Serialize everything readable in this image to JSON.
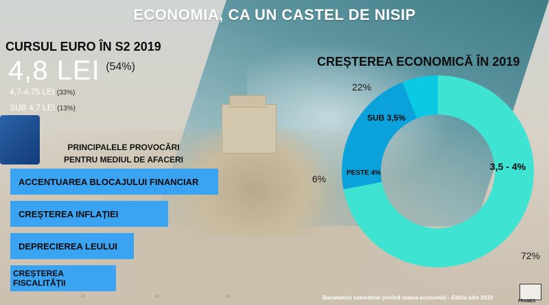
{
  "title": "ECONOMIA, CA UN CASTEL DE NISIP",
  "euro": {
    "title": "CURSUL EURO ÎN S2 2019",
    "main_value": "4,8 LEI",
    "main_pct": "(54%)",
    "rows": [
      {
        "label": "4,7-4,75 LEI",
        "pct": "(33%)"
      },
      {
        "label": "SUB 4,7 LEI",
        "pct": "(13%)"
      }
    ]
  },
  "challenges": {
    "title_line1": "PRINCIPALELE PROVOCĂRI",
    "title_line2": "PENTRU MEDIUL DE AFACERI",
    "items": [
      "ACCENTUAREA BLOCAJULUI FINANCIAR",
      "CREȘTEREA INFLAȚIEI",
      "DEPRECIEREA LEULUI",
      "CREȘTEREA FISCALITĂȚII"
    ],
    "color": "#3aa3f2"
  },
  "chart_data": {
    "type": "pie",
    "title": "CREȘTEREA ECONOMICĂ ÎN 2019",
    "donut": true,
    "categories": [
      "3,5 - 4%",
      "SUB 3,5%",
      "PESTE 4%"
    ],
    "values": [
      72,
      22,
      6
    ],
    "value_labels": [
      "72%",
      "22%",
      "6%"
    ],
    "colors": [
      "#3ee3d2",
      "#0ba1da",
      "#0bc9e3"
    ],
    "legend": "labels on slices"
  },
  "ruler_marks": [
    "20",
    "40",
    "60"
  ],
  "footer": "Barometrul semestrial privind starea economiei - Editia Iulie 2019",
  "logo_text": "FRAMES"
}
